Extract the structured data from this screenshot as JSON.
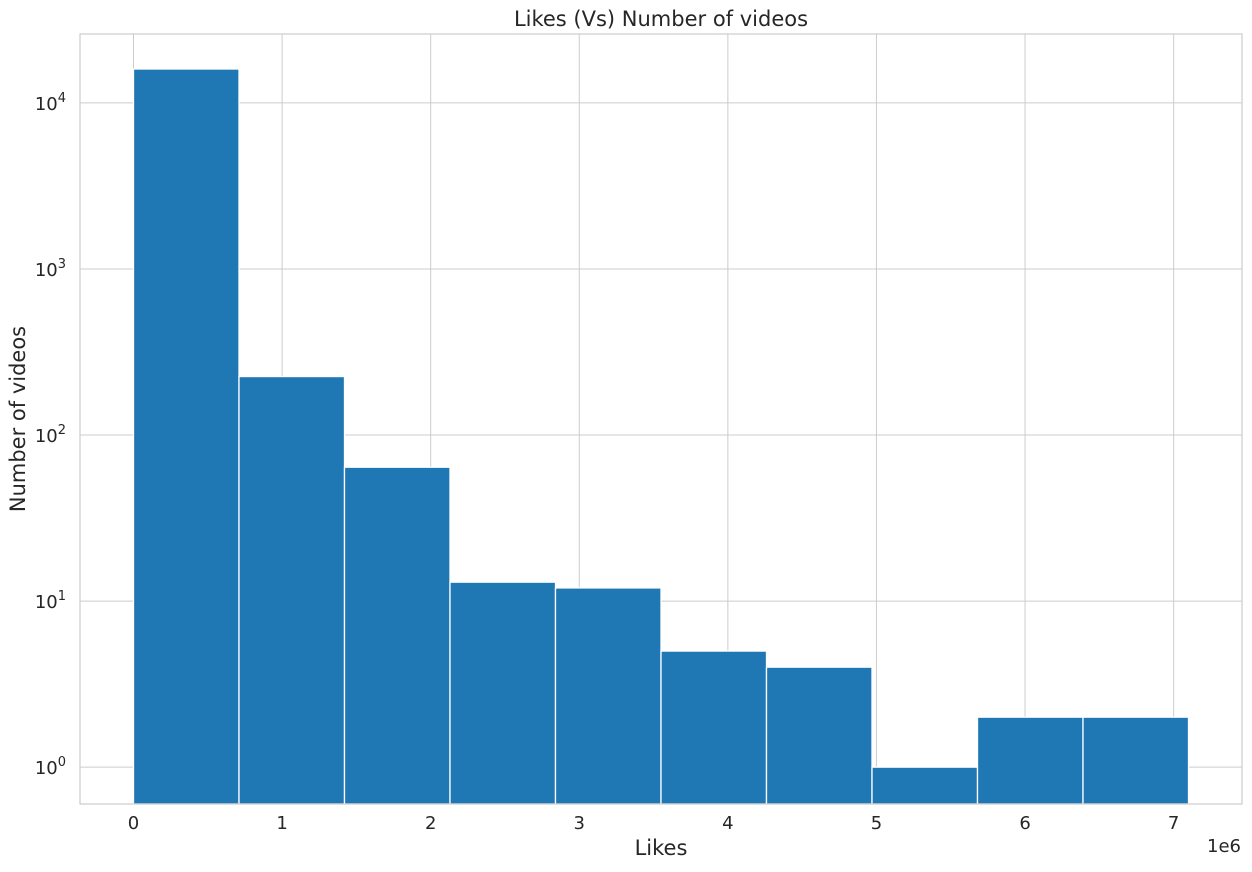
{
  "chart_data": {
    "type": "bar",
    "title": "Likes (Vs) Number of videos",
    "xlabel": "Likes",
    "ylabel": "Number of videos",
    "x_offset_label": "1e6",
    "x_scale_factor": 1000000,
    "y_scale": "log",
    "bin_edges": [
      0,
      710000,
      1420000,
      2130000,
      2840000,
      3550000,
      4260000,
      4970000,
      5680000,
      6390000,
      7100000
    ],
    "values": [
      16000,
      225,
      64,
      13,
      12,
      5,
      4,
      1,
      2,
      2
    ],
    "xlim": [
      -360000,
      7460000
    ],
    "ylim": [
      0.6,
      26000
    ],
    "x_ticks": [
      {
        "value": 0,
        "label": "0"
      },
      {
        "value": 1000000,
        "label": "1"
      },
      {
        "value": 2000000,
        "label": "2"
      },
      {
        "value": 3000000,
        "label": "3"
      },
      {
        "value": 4000000,
        "label": "4"
      },
      {
        "value": 5000000,
        "label": "5"
      },
      {
        "value": 6000000,
        "label": "6"
      },
      {
        "value": 7000000,
        "label": "7"
      }
    ],
    "y_ticks": [
      {
        "value": 1,
        "base": "10",
        "exp": "0"
      },
      {
        "value": 10,
        "base": "10",
        "exp": "1"
      },
      {
        "value": 100,
        "base": "10",
        "exp": "2"
      },
      {
        "value": 1000,
        "base": "10",
        "exp": "3"
      },
      {
        "value": 10000,
        "base": "10",
        "exp": "4"
      }
    ],
    "grid": true,
    "bar_color": "#1f77b4",
    "bar_edge_color": "#ffffff",
    "grid_color": "#cccccc",
    "spine_color": "#cccccc"
  }
}
